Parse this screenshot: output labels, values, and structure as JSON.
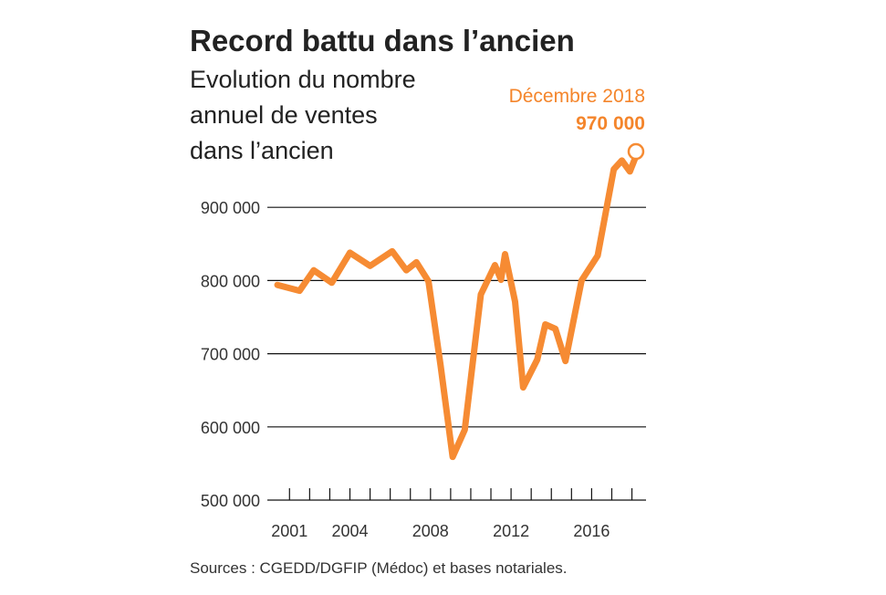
{
  "chart_data": {
    "type": "line",
    "title": "Record battu dans l’ancien",
    "subtitle": [
      "Evolution du nombre",
      "annuel de ventes",
      "dans l’ancien"
    ],
    "source": "Sources : CGEDD/DGFIP (Médoc) et bases notariales.",
    "annotation": "Décembre 2018",
    "x": [
      2000.4,
      2001.5,
      2002.2,
      2003.1,
      2004.0,
      2005.0,
      2006.1,
      2006.8,
      2007.3,
      2007.9,
      2008.5,
      2009.1,
      2009.7,
      2010.5,
      2011.2,
      2011.5,
      2011.7,
      2012.2,
      2012.6,
      2013.3,
      2013.7,
      2014.2,
      2014.7,
      2015.5,
      2016.3,
      2017.1,
      2017.5,
      2017.9,
      2018.2
    ],
    "series": [
      {
        "color": "#f68b33",
        "values": [
          794000,
          786000,
          814000,
          797000,
          838000,
          820000,
          840000,
          814000,
          825000,
          799000,
          684000,
          559000,
          596000,
          781000,
          821000,
          801000,
          836000,
          771000,
          654000,
          692000,
          740000,
          734000,
          690000,
          800000,
          834000,
          952000,
          964000,
          949000,
          970000
        ],
        "value_labels": [
          null,
          null,
          null,
          null,
          null,
          null,
          null,
          null,
          null,
          null,
          null,
          null,
          null,
          null,
          null,
          null,
          null,
          null,
          null,
          null,
          null,
          null,
          null,
          null,
          null,
          null,
          null,
          null,
          "970 000"
        ]
      }
    ],
    "xlim": [
      1999.9,
      2018.7
    ],
    "xticks": [
      2001,
      2004,
      2008,
      2012,
      2016
    ],
    "minor_xticks": [
      2001,
      2002,
      2003,
      2004,
      2005,
      2006,
      2007,
      2008,
      2009,
      2010,
      2011,
      2012,
      2013,
      2014,
      2015,
      2016,
      2017,
      2018
    ],
    "ylim": [
      500000,
      1000000
    ],
    "yticks": [
      {
        "value": 500000,
        "label": "500 000"
      },
      {
        "value": 600000,
        "label": "600 000"
      },
      {
        "value": 700000,
        "label": "700 000"
      },
      {
        "value": 800000,
        "label": "800 000"
      },
      {
        "value": 900000,
        "label": "900 000"
      }
    ],
    "grid": true
  }
}
